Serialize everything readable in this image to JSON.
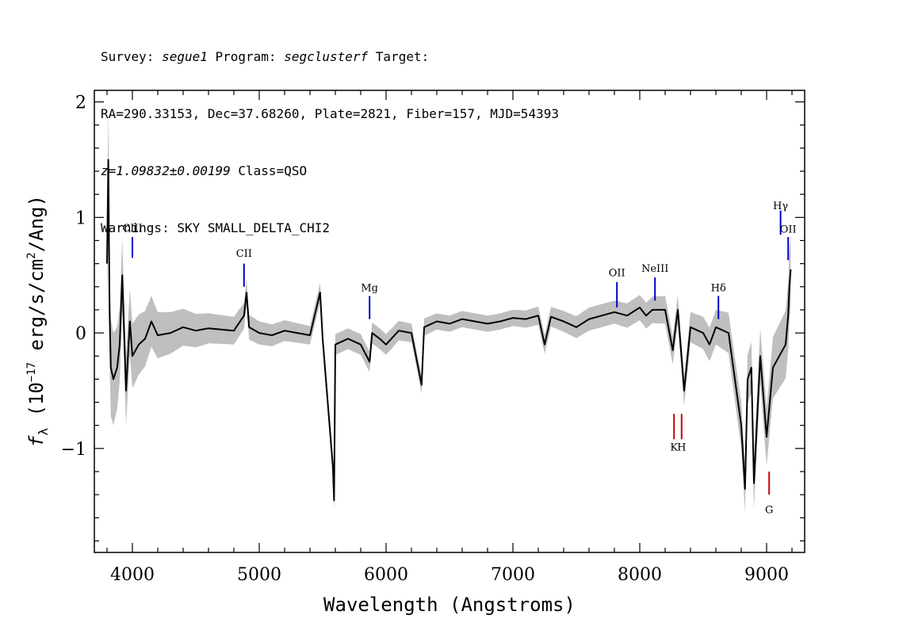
{
  "header": {
    "line1": {
      "survey_label": "Survey: ",
      "survey": "segue1",
      "program_label": " Program: ",
      "program": "segclusterf",
      "target_label": " Target:"
    },
    "line2": "RA=290.33153, Dec=37.68260, Plate=2821, Fiber=157, MJD=54393",
    "line3": {
      "z": "z=1.09832±0.00199",
      "class": " Class=QSO"
    },
    "line4": "Warnings: SKY SMALL_DELTA_CHI2"
  },
  "chart_data": {
    "type": "line",
    "xlabel": "Wavelength (Angstroms)",
    "ylabel_prefix": "f",
    "ylabel_sub": "λ",
    "ylabel_rest": " (10",
    "ylabel_exp": "−17",
    "ylabel_units": " erg/s/cm",
    "ylabel_sq": "2",
    "ylabel_end": "/Ang)",
    "xlim": [
      3700,
      9300
    ],
    "ylim": [
      -1.9,
      2.1
    ],
    "x_ticks": [
      4000,
      5000,
      6000,
      7000,
      8000,
      9000
    ],
    "y_ticks": [
      2,
      1,
      0,
      -1
    ],
    "y_tick_labels": [
      "2",
      "1",
      "0",
      "−1"
    ],
    "colors": {
      "flux": "#000000",
      "error_band": "#bfbfbf",
      "emission": "#0000cc",
      "absorption": "#cc0000"
    },
    "series": [
      {
        "style": "gray band",
        "x": [
          3800,
          3850,
          3900,
          3950,
          4000,
          4100,
          4200,
          4400,
          4600,
          4800,
          5000,
          5200,
          5400,
          5600,
          5800,
          6000,
          6200,
          6400,
          6600,
          6800,
          7000,
          7200,
          7400,
          7600,
          7800,
          8000,
          8200,
          8400,
          8600,
          8800,
          9000,
          9100,
          9180
        ],
        "values": [
          0.45,
          0.4,
          0.32,
          0.3,
          0.28,
          0.24,
          0.2,
          0.16,
          0.13,
          0.12,
          0.1,
          0.09,
          0.08,
          0.09,
          0.09,
          0.09,
          0.08,
          0.07,
          0.07,
          0.07,
          0.07,
          0.08,
          0.09,
          0.1,
          0.1,
          0.11,
          0.12,
          0.13,
          0.15,
          0.2,
          0.25,
          0.28,
          0.3
        ]
      },
      {
        "style": "black line",
        "x": [
          3800,
          3810,
          3820,
          3830,
          3850,
          3880,
          3900,
          3920,
          3950,
          3980,
          4000,
          4050,
          4100,
          4150,
          4200,
          4300,
          4400,
          4500,
          4600,
          4700,
          4800,
          4880,
          4900,
          4920,
          5000,
          5100,
          5200,
          5300,
          5400,
          5480,
          5500,
          5580,
          5590,
          5600,
          5700,
          5800,
          5870,
          5890,
          5950,
          6000,
          6100,
          6200,
          6280,
          6300,
          6400,
          6500,
          6600,
          6700,
          6800,
          6900,
          7000,
          7100,
          7200,
          7250,
          7300,
          7400,
          7500,
          7600,
          7700,
          7800,
          7900,
          8000,
          8050,
          8100,
          8200,
          8260,
          8300,
          8350,
          8400,
          8500,
          8550,
          8600,
          8700,
          8800,
          8830,
          8850,
          8880,
          8900,
          8950,
          9000,
          9050,
          9100,
          9150,
          9170,
          9180,
          9190
        ],
        "values": [
          0.6,
          1.5,
          0.2,
          -0.3,
          -0.4,
          -0.3,
          -0.1,
          0.5,
          -0.5,
          0.1,
          -0.2,
          -0.1,
          -0.05,
          0.1,
          -0.02,
          0.0,
          0.05,
          0.02,
          0.04,
          0.03,
          0.02,
          0.15,
          0.35,
          0.05,
          0.0,
          -0.02,
          0.02,
          0.0,
          -0.02,
          0.35,
          -0.05,
          -1.15,
          -1.45,
          -0.1,
          -0.05,
          -0.1,
          -0.25,
          0.0,
          -0.05,
          -0.1,
          0.02,
          0.0,
          -0.45,
          0.05,
          0.1,
          0.08,
          0.12,
          0.1,
          0.08,
          0.1,
          0.13,
          0.12,
          0.15,
          -0.1,
          0.14,
          0.1,
          0.05,
          0.12,
          0.15,
          0.18,
          0.15,
          0.22,
          0.15,
          0.2,
          0.2,
          -0.15,
          0.2,
          -0.5,
          0.05,
          0.0,
          -0.1,
          0.05,
          0.0,
          -0.8,
          -1.35,
          -0.4,
          -0.3,
          -1.3,
          -0.2,
          -0.9,
          -0.3,
          -0.2,
          -0.1,
          0.15,
          0.4,
          0.55
        ]
      }
    ],
    "line_markers": [
      {
        "label": "CIII",
        "x": 4000,
        "y_text": 0.88,
        "y_lo": 0.65,
        "y_hi": 0.83,
        "kind": "emission"
      },
      {
        "label": "CII",
        "x": 4880,
        "y_text": 0.66,
        "y_lo": 0.4,
        "y_hi": 0.6,
        "kind": "emission"
      },
      {
        "label": "Mg",
        "x": 5870,
        "y_text": 0.36,
        "y_lo": 0.12,
        "y_hi": 0.32,
        "kind": "emission"
      },
      {
        "label": "OII",
        "x": 7820,
        "y_text": 0.49,
        "y_lo": 0.22,
        "y_hi": 0.44,
        "kind": "emission"
      },
      {
        "label": "NeIII",
        "x": 8120,
        "y_text": 0.53,
        "y_lo": 0.28,
        "y_hi": 0.48,
        "kind": "emission"
      },
      {
        "label": "Hδ",
        "x": 8620,
        "y_text": 0.36,
        "y_lo": 0.12,
        "y_hi": 0.32,
        "kind": "emission"
      },
      {
        "label": "Hγ",
        "x": 9110,
        "y_text": 1.07,
        "y_lo": 0.85,
        "y_hi": 1.06,
        "kind": "emission"
      },
      {
        "label": "OII",
        "x": 9170,
        "y_text": 0.87,
        "y_lo": 0.63,
        "y_hi": 0.83,
        "kind": "emission"
      },
      {
        "label": "K",
        "x": 8270,
        "y_text": -1.02,
        "y_lo": -0.92,
        "y_hi": -0.7,
        "kind": "absorption"
      },
      {
        "label": "H",
        "x": 8330,
        "y_text": -1.02,
        "y_lo": -0.92,
        "y_hi": -0.7,
        "kind": "absorption"
      },
      {
        "label": "G",
        "x": 9020,
        "y_text": -1.56,
        "y_lo": -1.4,
        "y_hi": -1.2,
        "kind": "absorption"
      }
    ]
  }
}
